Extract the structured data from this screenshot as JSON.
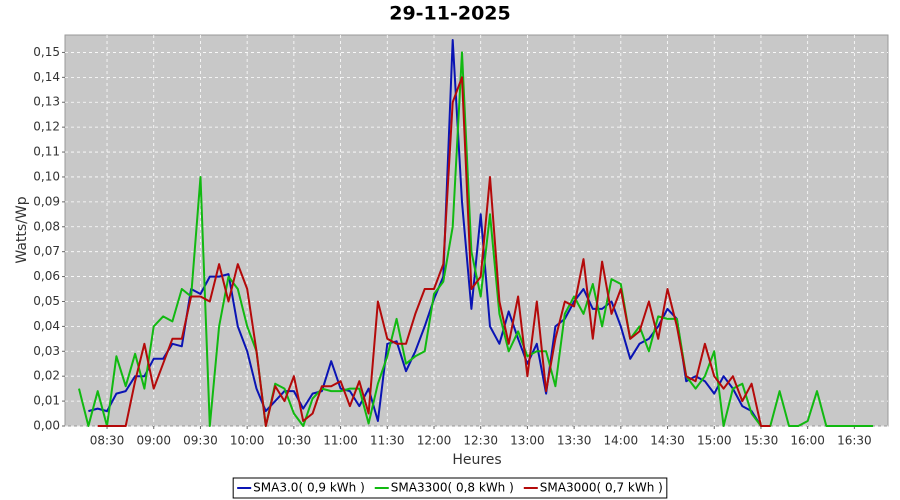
{
  "chart_data": {
    "type": "line",
    "title": "29-11-2025",
    "x_label": "Heures",
    "y_label": "Watts/Wp",
    "x": [
      8.2,
      8.3,
      8.4,
      8.5,
      8.6,
      8.7,
      8.8,
      8.9,
      9.0,
      9.1,
      9.2,
      9.3,
      9.4,
      9.5,
      9.6,
      9.7,
      9.8,
      9.9,
      10.0,
      10.1,
      10.2,
      10.3,
      10.4,
      10.5,
      10.6,
      10.7,
      10.8,
      10.9,
      11.0,
      11.1,
      11.2,
      11.3,
      11.4,
      11.5,
      11.6,
      11.7,
      11.8,
      11.9,
      12.0,
      12.1,
      12.2,
      12.3,
      12.4,
      12.5,
      12.6,
      12.7,
      12.8,
      12.9,
      13.0,
      13.1,
      13.2,
      13.3,
      13.4,
      13.5,
      13.6,
      13.7,
      13.8,
      13.9,
      14.0,
      14.1,
      14.2,
      14.3,
      14.4,
      14.5,
      14.6,
      14.7,
      14.8,
      14.9,
      15.0,
      15.1,
      15.2,
      15.3,
      15.4,
      15.5,
      15.6,
      15.7,
      15.8,
      15.9,
      16.0,
      16.1,
      16.2,
      16.3,
      16.4,
      16.5,
      16.6,
      16.7
    ],
    "series": [
      {
        "name": "SMA3.0( 0,9 kWh )",
        "color": "#0a14b4",
        "values": [
          null,
          0.006,
          0.007,
          0.006,
          0.013,
          0.014,
          0.02,
          0.02,
          0.027,
          0.027,
          0.033,
          0.032,
          0.055,
          0.053,
          0.06,
          0.06,
          0.061,
          0.04,
          0.03,
          0.015,
          0.006,
          0.01,
          0.014,
          0.014,
          0.007,
          0.013,
          0.014,
          0.026,
          0.015,
          0.014,
          0.008,
          0.015,
          0.002,
          0.033,
          0.034,
          0.022,
          0.03,
          0.04,
          0.051,
          0.06,
          0.155,
          0.09,
          0.047,
          0.085,
          0.04,
          0.033,
          0.046,
          0.035,
          0.025,
          0.033,
          0.013,
          0.04,
          0.043,
          0.05,
          0.055,
          0.047,
          0.047,
          0.05,
          0.04,
          0.027,
          0.033,
          0.035,
          0.04,
          0.047,
          0.043,
          0.018,
          0.02,
          0.018,
          0.013,
          0.02,
          0.015,
          0.008,
          0.006,
          0.0,
          null,
          null,
          null,
          null,
          null,
          null,
          null,
          null,
          null,
          null,
          null,
          null
        ]
      },
      {
        "name": "SMA3300( 0,8 kWh )",
        "color": "#11b911",
        "values": [
          0.015,
          0.0,
          0.014,
          0.0,
          0.028,
          0.016,
          0.029,
          0.015,
          0.04,
          0.044,
          0.042,
          0.055,
          0.052,
          0.1,
          0.0,
          0.04,
          0.06,
          0.055,
          0.04,
          0.03,
          0.0,
          0.017,
          0.015,
          0.005,
          0.0,
          0.011,
          0.015,
          0.014,
          0.014,
          0.015,
          0.015,
          0.001,
          0.017,
          0.028,
          0.043,
          0.025,
          0.028,
          0.03,
          0.053,
          0.058,
          0.08,
          0.15,
          0.07,
          0.052,
          0.085,
          0.045,
          0.03,
          0.038,
          0.028,
          0.03,
          0.03,
          0.016,
          0.045,
          0.052,
          0.045,
          0.057,
          0.04,
          0.059,
          0.057,
          0.035,
          0.04,
          0.03,
          0.044,
          0.043,
          0.043,
          0.02,
          0.015,
          0.02,
          0.03,
          0.0,
          0.015,
          0.017,
          0.005,
          0.0,
          0.0,
          0.014,
          0.0,
          0.0,
          0.002,
          0.014,
          0.0,
          0.0,
          0.0,
          0.0,
          0.0,
          0.0
        ]
      },
      {
        "name": "SMA3000( 0,7 kWh )",
        "color": "#b40a0a",
        "values": [
          null,
          null,
          0.0,
          0.0,
          0.0,
          0.0,
          0.018,
          0.033,
          0.015,
          0.025,
          0.035,
          0.035,
          0.052,
          0.052,
          0.05,
          0.065,
          0.05,
          0.065,
          0.055,
          0.03,
          0.0,
          0.016,
          0.01,
          0.02,
          0.002,
          0.005,
          0.016,
          0.016,
          0.018,
          0.008,
          0.018,
          0.005,
          0.05,
          0.035,
          0.033,
          0.033,
          0.045,
          0.055,
          0.055,
          0.065,
          0.13,
          0.14,
          0.055,
          0.06,
          0.1,
          0.05,
          0.033,
          0.052,
          0.02,
          0.05,
          0.014,
          0.035,
          0.05,
          0.048,
          0.067,
          0.035,
          0.066,
          0.045,
          0.055,
          0.035,
          0.038,
          0.05,
          0.035,
          0.055,
          0.04,
          0.02,
          0.018,
          0.033,
          0.02,
          0.015,
          0.02,
          0.01,
          0.017,
          0.0,
          0.0,
          null,
          null,
          null,
          null,
          null,
          null,
          null,
          null,
          null,
          null,
          null
        ]
      }
    ],
    "xlim": [
      8.05,
      16.86
    ],
    "xticks": [
      {
        "value": 8.5,
        "label": "08:30"
      },
      {
        "value": 9.0,
        "label": "09:00"
      },
      {
        "value": 9.5,
        "label": "09:30"
      },
      {
        "value": 10.0,
        "label": "10:00"
      },
      {
        "value": 10.5,
        "label": "10:30"
      },
      {
        "value": 11.0,
        "label": "11:00"
      },
      {
        "value": 11.5,
        "label": "11:30"
      },
      {
        "value": 12.0,
        "label": "12:00"
      },
      {
        "value": 12.5,
        "label": "12:30"
      },
      {
        "value": 13.0,
        "label": "13:00"
      },
      {
        "value": 13.5,
        "label": "13:30"
      },
      {
        "value": 14.0,
        "label": "14:00"
      },
      {
        "value": 14.5,
        "label": "14:30"
      },
      {
        "value": 15.0,
        "label": "15:00"
      },
      {
        "value": 15.5,
        "label": "15:30"
      },
      {
        "value": 16.0,
        "label": "16:00"
      },
      {
        "value": 16.5,
        "label": "16:30"
      }
    ],
    "ylim": [
      0,
      0.157
    ],
    "yticks": [
      {
        "value": 0,
        "label": "0,00"
      },
      {
        "value": 0.01,
        "label": "0,01"
      },
      {
        "value": 0.02,
        "label": "0,02"
      },
      {
        "value": 0.03,
        "label": "0,03"
      },
      {
        "value": 0.04,
        "label": "0,04"
      },
      {
        "value": 0.05,
        "label": "0,05"
      },
      {
        "value": 0.06,
        "label": "0,06"
      },
      {
        "value": 0.07,
        "label": "0,07"
      },
      {
        "value": 0.08,
        "label": "0,08"
      },
      {
        "value": 0.09,
        "label": "0,09"
      },
      {
        "value": 0.1,
        "label": "0,10"
      },
      {
        "value": 0.11,
        "label": "0,11"
      },
      {
        "value": 0.12,
        "label": "0,12"
      },
      {
        "value": 0.13,
        "label": "0,13"
      },
      {
        "value": 0.14,
        "label": "0,14"
      },
      {
        "value": 0.15,
        "label": "0,15"
      }
    ],
    "grid": true,
    "legend": "bottom"
  }
}
